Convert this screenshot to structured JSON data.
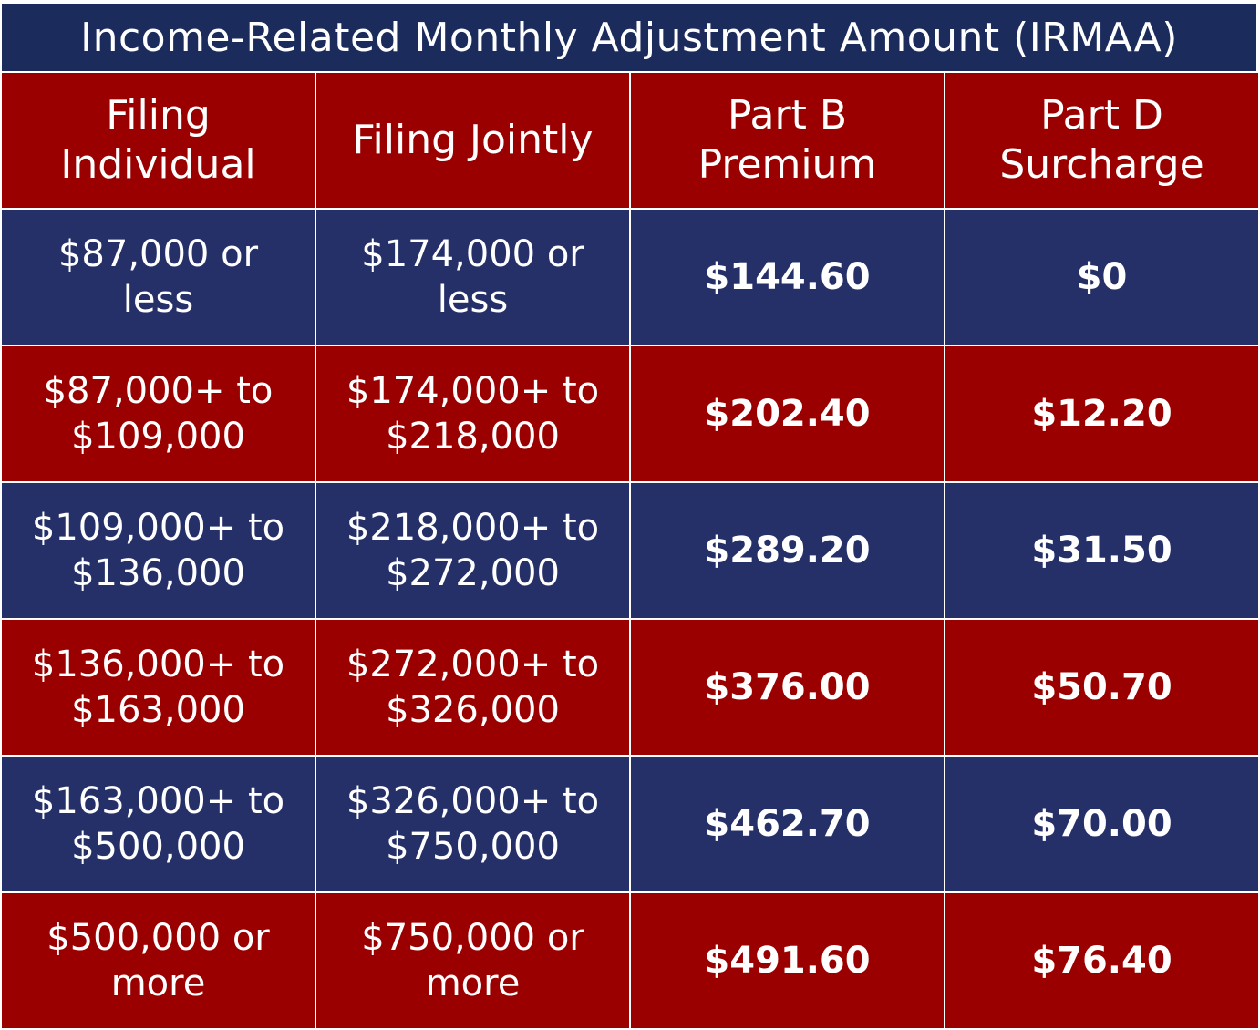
{
  "title": "Income-Related Monthly Adjustment Amount (IRMAA)",
  "colors": {
    "title_bg": "#1b2b5c",
    "red_row": "#9b0000",
    "blue_row": "#253068",
    "text": "#ffffff",
    "divider": "#ffffff"
  },
  "headers": [
    {
      "line1": "Filing",
      "line2": "Individual"
    },
    {
      "line1": "Filing Jointly",
      "line2": ""
    },
    {
      "line1": "Part B",
      "line2": "Premium"
    },
    {
      "line1": "Part D",
      "line2": "Surcharge"
    }
  ],
  "rows": [
    {
      "individual": {
        "line1": "$87,000 or",
        "line2": "less"
      },
      "jointly": {
        "line1": "$174,000 or",
        "line2": "less"
      },
      "part_b": "$144.60",
      "part_d": "$0"
    },
    {
      "individual": {
        "line1": "$87,000+ to",
        "line2": "$109,000"
      },
      "jointly": {
        "line1": "$174,000+ to",
        "line2": "$218,000"
      },
      "part_b": "$202.40",
      "part_d": "$12.20"
    },
    {
      "individual": {
        "line1": "$109,000+ to",
        "line2": "$136,000"
      },
      "jointly": {
        "line1": "$218,000+ to",
        "line2": "$272,000"
      },
      "part_b": "$289.20",
      "part_d": "$31.50"
    },
    {
      "individual": {
        "line1": "$136,000+ to",
        "line2": "$163,000"
      },
      "jointly": {
        "line1": "$272,000+ to",
        "line2": "$326,000"
      },
      "part_b": "$376.00",
      "part_d": "$50.70"
    },
    {
      "individual": {
        "line1": "$163,000+ to",
        "line2": "$500,000"
      },
      "jointly": {
        "line1": "$326,000+ to",
        "line2": "$750,000"
      },
      "part_b": "$462.70",
      "part_d": "$70.00"
    },
    {
      "individual": {
        "line1": "$500,000 or",
        "line2": "more"
      },
      "jointly": {
        "line1": "$750,000 or",
        "line2": "more"
      },
      "part_b": "$491.60",
      "part_d": "$76.40"
    }
  ]
}
